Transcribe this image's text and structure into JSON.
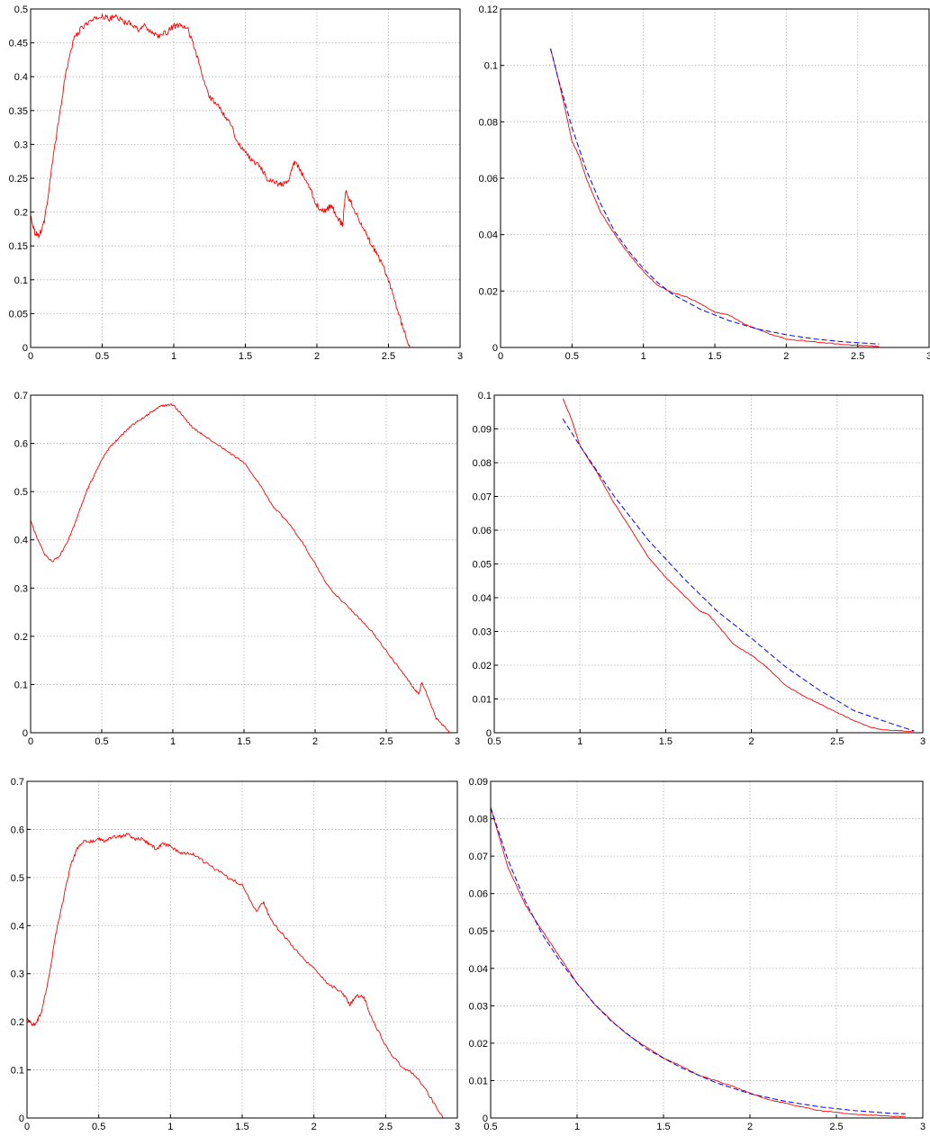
{
  "chart_data": [
    {
      "type": "line",
      "title": "",
      "xlabel": "",
      "ylabel": "",
      "xlim": [
        0,
        3
      ],
      "ylim": [
        0,
        0.5
      ],
      "grid": true,
      "xticks": [
        0,
        0.5,
        1,
        1.5,
        2,
        2.5,
        3
      ],
      "yticks": [
        0,
        0.05,
        0.1,
        0.15,
        0.2,
        0.25,
        0.3,
        0.35,
        0.4,
        0.45,
        0.5
      ],
      "series": [
        {
          "color": "#ff0000",
          "style": "solid",
          "noise": 0.008,
          "x": [
            0,
            0.03,
            0.06,
            0.1,
            0.15,
            0.2,
            0.25,
            0.3,
            0.35,
            0.4,
            0.45,
            0.5,
            0.55,
            0.6,
            0.65,
            0.7,
            0.75,
            0.8,
            0.85,
            0.9,
            0.95,
            1.0,
            1.05,
            1.1,
            1.15,
            1.2,
            1.25,
            1.3,
            1.35,
            1.4,
            1.45,
            1.5,
            1.55,
            1.6,
            1.65,
            1.7,
            1.75,
            1.8,
            1.83,
            1.85,
            1.9,
            1.95,
            2.0,
            2.05,
            2.1,
            2.15,
            2.18,
            2.2,
            2.25,
            2.3,
            2.35,
            2.4,
            2.45,
            2.5,
            2.55,
            2.6,
            2.65
          ],
          "y": [
            0.195,
            0.17,
            0.165,
            0.19,
            0.27,
            0.34,
            0.41,
            0.455,
            0.47,
            0.48,
            0.485,
            0.49,
            0.485,
            0.49,
            0.48,
            0.48,
            0.47,
            0.475,
            0.465,
            0.46,
            0.465,
            0.475,
            0.475,
            0.47,
            0.44,
            0.4,
            0.37,
            0.36,
            0.345,
            0.33,
            0.3,
            0.29,
            0.275,
            0.27,
            0.25,
            0.245,
            0.24,
            0.245,
            0.27,
            0.275,
            0.255,
            0.235,
            0.21,
            0.2,
            0.21,
            0.19,
            0.18,
            0.23,
            0.21,
            0.185,
            0.165,
            0.145,
            0.125,
            0.1,
            0.065,
            0.03,
            0
          ]
        }
      ]
    },
    {
      "type": "line",
      "title": "",
      "xlabel": "",
      "ylabel": "",
      "xlim": [
        0,
        3
      ],
      "ylim": [
        0,
        0.12
      ],
      "grid": true,
      "xticks": [
        0,
        0.5,
        1,
        1.5,
        2,
        2.5,
        3
      ],
      "yticks": [
        0,
        0.02,
        0.04,
        0.06,
        0.08,
        0.1,
        0.12
      ],
      "series": [
        {
          "color": "#ff0000",
          "style": "solid",
          "noise": 0.0003,
          "x": [
            0.35,
            0.4,
            0.45,
            0.5,
            0.55,
            0.6,
            0.65,
            0.7,
            0.8,
            0.9,
            1.0,
            1.1,
            1.2,
            1.3,
            1.4,
            1.5,
            1.6,
            1.7,
            1.8,
            1.9,
            2.0,
            2.2,
            2.4,
            2.6,
            2.65
          ],
          "y": [
            0.106,
            0.096,
            0.085,
            0.073,
            0.068,
            0.06,
            0.054,
            0.048,
            0.04,
            0.033,
            0.027,
            0.022,
            0.0195,
            0.018,
            0.0155,
            0.0125,
            0.0115,
            0.0085,
            0.0065,
            0.0045,
            0.003,
            0.002,
            0.001,
            0.0005,
            0.0003
          ]
        },
        {
          "color": "#0000ff",
          "style": "dashed",
          "noise": 0,
          "x": [
            0.35,
            0.4,
            0.5,
            0.6,
            0.7,
            0.8,
            0.9,
            1.0,
            1.1,
            1.2,
            1.4,
            1.6,
            1.8,
            2.0,
            2.2,
            2.4,
            2.65
          ],
          "y": [
            0.106,
            0.096,
            0.078,
            0.063,
            0.051,
            0.041,
            0.034,
            0.028,
            0.023,
            0.019,
            0.0135,
            0.0095,
            0.0065,
            0.0045,
            0.003,
            0.002,
            0.0012
          ]
        }
      ]
    },
    {
      "type": "line",
      "title": "",
      "xlabel": "",
      "ylabel": "",
      "xlim": [
        0,
        3
      ],
      "ylim": [
        0,
        0.7
      ],
      "grid": true,
      "xticks": [
        0,
        0.5,
        1,
        1.5,
        2,
        2.5,
        3
      ],
      "yticks": [
        0,
        0.1,
        0.2,
        0.3,
        0.4,
        0.5,
        0.6,
        0.7
      ],
      "series": [
        {
          "color": "#ff0000",
          "style": "solid",
          "noise": 0.004,
          "x": [
            0,
            0.05,
            0.1,
            0.15,
            0.2,
            0.25,
            0.3,
            0.35,
            0.4,
            0.45,
            0.5,
            0.55,
            0.6,
            0.65,
            0.7,
            0.75,
            0.8,
            0.85,
            0.9,
            0.95,
            1.0,
            1.05,
            1.1,
            1.15,
            1.2,
            1.3,
            1.4,
            1.5,
            1.6,
            1.7,
            1.8,
            1.9,
            2.0,
            2.1,
            2.2,
            2.3,
            2.4,
            2.5,
            2.6,
            2.65,
            2.7,
            2.73,
            2.75,
            2.8,
            2.85,
            2.9,
            2.95
          ],
          "y": [
            0.44,
            0.4,
            0.37,
            0.355,
            0.365,
            0.39,
            0.425,
            0.465,
            0.505,
            0.535,
            0.565,
            0.59,
            0.605,
            0.62,
            0.635,
            0.645,
            0.655,
            0.665,
            0.675,
            0.68,
            0.68,
            0.665,
            0.645,
            0.63,
            0.62,
            0.6,
            0.58,
            0.56,
            0.52,
            0.47,
            0.44,
            0.4,
            0.35,
            0.3,
            0.27,
            0.24,
            0.21,
            0.17,
            0.13,
            0.11,
            0.09,
            0.08,
            0.105,
            0.07,
            0.03,
            0.015,
            0
          ]
        }
      ]
    },
    {
      "type": "line",
      "title": "",
      "xlabel": "",
      "ylabel": "",
      "xlim": [
        0.5,
        3
      ],
      "ylim": [
        0,
        0.1
      ],
      "grid": true,
      "xticks": [
        0.5,
        1,
        1.5,
        2,
        2.5,
        3
      ],
      "yticks": [
        0,
        0.01,
        0.02,
        0.03,
        0.04,
        0.05,
        0.06,
        0.07,
        0.08,
        0.09,
        0.1
      ],
      "series": [
        {
          "color": "#ff0000",
          "style": "solid",
          "noise": 0.00025,
          "x": [
            0.9,
            0.95,
            1.0,
            1.1,
            1.2,
            1.3,
            1.4,
            1.5,
            1.6,
            1.7,
            1.75,
            1.8,
            1.9,
            2.0,
            2.1,
            2.2,
            2.3,
            2.4,
            2.5,
            2.6,
            2.7,
            2.8,
            2.95
          ],
          "y": [
            0.099,
            0.093,
            0.085,
            0.077,
            0.068,
            0.06,
            0.052,
            0.046,
            0.041,
            0.036,
            0.035,
            0.032,
            0.026,
            0.023,
            0.019,
            0.014,
            0.011,
            0.0085,
            0.006,
            0.0035,
            0.0015,
            0.0007,
            0.0005
          ]
        },
        {
          "color": "#0000ff",
          "style": "dashed",
          "noise": 0,
          "x": [
            0.9,
            1.0,
            1.2,
            1.4,
            1.6,
            1.8,
            2.0,
            2.2,
            2.4,
            2.6,
            2.8,
            2.95
          ],
          "y": [
            0.093,
            0.085,
            0.07,
            0.057,
            0.046,
            0.036,
            0.028,
            0.0195,
            0.0125,
            0.0065,
            0.003,
            0.0005
          ]
        }
      ]
    },
    {
      "type": "line",
      "title": "",
      "xlabel": "",
      "ylabel": "",
      "xlim": [
        0,
        3
      ],
      "ylim": [
        0,
        0.7
      ],
      "grid": true,
      "xticks": [
        0,
        0.5,
        1,
        1.5,
        2,
        2.5,
        3
      ],
      "yticks": [
        0,
        0.1,
        0.2,
        0.3,
        0.4,
        0.5,
        0.6,
        0.7
      ],
      "series": [
        {
          "color": "#ff0000",
          "style": "solid",
          "noise": 0.007,
          "x": [
            0,
            0.03,
            0.06,
            0.1,
            0.15,
            0.2,
            0.25,
            0.3,
            0.35,
            0.4,
            0.45,
            0.5,
            0.55,
            0.6,
            0.65,
            0.7,
            0.75,
            0.8,
            0.85,
            0.9,
            0.95,
            1.0,
            1.05,
            1.1,
            1.15,
            1.2,
            1.3,
            1.4,
            1.5,
            1.6,
            1.65,
            1.7,
            1.8,
            1.9,
            2.0,
            2.1,
            2.2,
            2.25,
            2.3,
            2.35,
            2.4,
            2.5,
            2.6,
            2.7,
            2.8,
            2.9
          ],
          "y": [
            0.21,
            0.195,
            0.195,
            0.22,
            0.29,
            0.38,
            0.45,
            0.52,
            0.56,
            0.575,
            0.575,
            0.58,
            0.575,
            0.585,
            0.585,
            0.59,
            0.58,
            0.58,
            0.57,
            0.56,
            0.57,
            0.565,
            0.555,
            0.55,
            0.55,
            0.54,
            0.52,
            0.5,
            0.485,
            0.43,
            0.45,
            0.41,
            0.375,
            0.34,
            0.31,
            0.28,
            0.26,
            0.235,
            0.255,
            0.25,
            0.21,
            0.15,
            0.11,
            0.09,
            0.05,
            0
          ]
        }
      ]
    },
    {
      "type": "line",
      "title": "",
      "xlabel": "",
      "ylabel": "",
      "xlim": [
        0.5,
        3
      ],
      "ylim": [
        0,
        0.09
      ],
      "grid": true,
      "xticks": [
        0.5,
        1,
        1.5,
        2,
        2.5,
        3
      ],
      "yticks": [
        0,
        0.01,
        0.02,
        0.03,
        0.04,
        0.05,
        0.06,
        0.07,
        0.08,
        0.09
      ],
      "series": [
        {
          "color": "#ff0000",
          "style": "solid",
          "noise": 0.0002,
          "x": [
            0.5,
            0.6,
            0.7,
            0.8,
            0.9,
            1.0,
            1.1,
            1.2,
            1.3,
            1.4,
            1.5,
            1.6,
            1.7,
            1.8,
            1.9,
            2.0,
            2.1,
            2.2,
            2.3,
            2.4,
            2.5,
            2.6,
            2.7,
            2.8,
            2.9
          ],
          "y": [
            0.083,
            0.067,
            0.057,
            0.05,
            0.043,
            0.036,
            0.0305,
            0.026,
            0.022,
            0.019,
            0.016,
            0.014,
            0.0115,
            0.01,
            0.0085,
            0.0067,
            0.005,
            0.004,
            0.003,
            0.002,
            0.0015,
            0.001,
            0.0008,
            0.0005,
            0.0004
          ]
        },
        {
          "color": "#0000ff",
          "style": "dashed",
          "noise": 0,
          "x": [
            0.5,
            0.6,
            0.7,
            0.8,
            0.9,
            1.0,
            1.1,
            1.2,
            1.4,
            1.6,
            1.8,
            2.0,
            2.2,
            2.4,
            2.6,
            2.8,
            2.9
          ],
          "y": [
            0.083,
            0.069,
            0.058,
            0.049,
            0.042,
            0.036,
            0.0305,
            0.0258,
            0.0185,
            0.0135,
            0.0095,
            0.0065,
            0.0045,
            0.003,
            0.002,
            0.0013,
            0.0011
          ]
        }
      ]
    }
  ]
}
